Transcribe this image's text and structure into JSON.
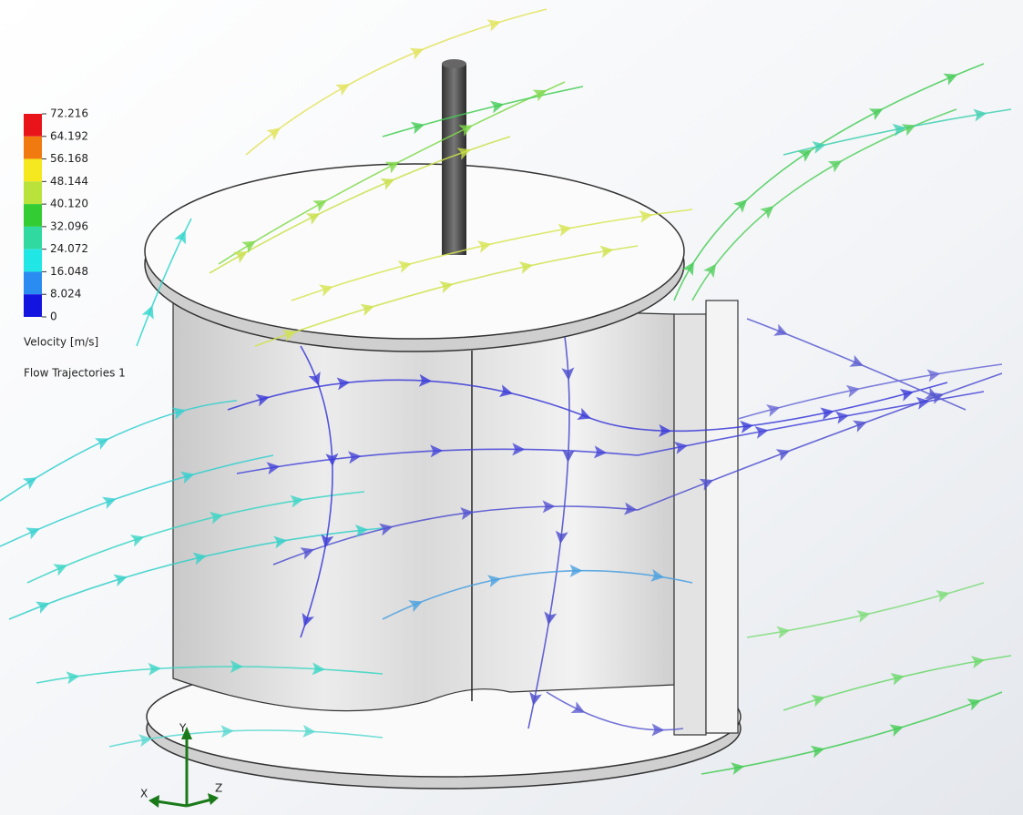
{
  "legend": {
    "title": "Velocity [m/s]",
    "ticks": [
      72.216,
      64.192,
      56.168,
      48.144,
      {
        "value": 40.12,
        "label": "40.120"
      },
      32.096,
      24.072,
      16.048,
      8.024,
      0
    ],
    "colors": [
      "#e8141a",
      "#f07a10",
      "#f5e81e",
      "#b9e23a",
      "#33cc33",
      "#2fd9a0",
      "#20e6e6",
      "#2a8cf0",
      "#1414e0"
    ]
  },
  "plot_name": "Flow Trajectories 1",
  "triad": {
    "x": "X",
    "y": "Y",
    "z": "Z"
  }
}
